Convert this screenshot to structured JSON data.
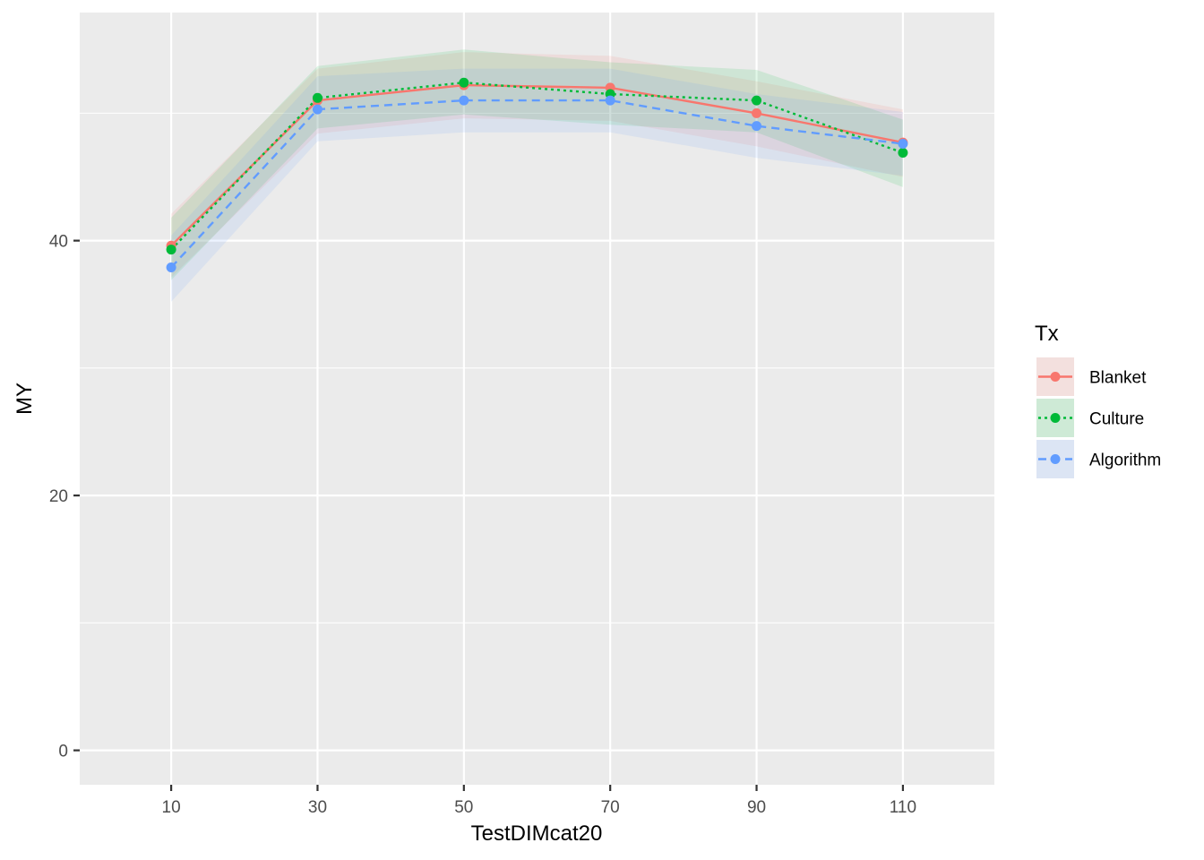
{
  "chart_data": {
    "type": "line",
    "title": "",
    "xlabel": "TestDIMcat20",
    "ylabel": "MY",
    "x": [
      10,
      30,
      50,
      70,
      90,
      110
    ],
    "xlim": [
      -2.5,
      122.5
    ],
    "ylim": [
      -2.7,
      57.9
    ],
    "x_ticks": [
      10,
      30,
      50,
      70,
      90,
      110
    ],
    "y_ticks": [
      0,
      20,
      40
    ],
    "y_minor_gridlines": [
      10,
      30,
      50
    ],
    "grid": true,
    "legend": {
      "title": "Tx",
      "placement": "right"
    },
    "series": [
      {
        "name": "Blanket",
        "color": "#F8766D",
        "linestyle": "solid",
        "values": [
          39.6,
          51.0,
          52.2,
          52.0,
          50.0,
          47.7
        ],
        "ci_lower": [
          37.1,
          48.4,
          49.6,
          49.4,
          47.4,
          45.0
        ],
        "ci_upper": [
          42.1,
          53.5,
          54.8,
          54.5,
          52.5,
          50.3
        ]
      },
      {
        "name": "Culture",
        "color": "#00BA38",
        "linestyle": "dotted",
        "values": [
          39.3,
          51.2,
          52.4,
          51.5,
          51.0,
          46.9
        ],
        "ci_lower": [
          36.9,
          48.8,
          49.9,
          49.1,
          48.5,
          44.2
        ],
        "ci_upper": [
          41.8,
          53.7,
          55.0,
          54.0,
          53.4,
          49.5
        ]
      },
      {
        "name": "Algorithm",
        "color": "#619CFF",
        "linestyle": "dashed",
        "values": [
          37.9,
          50.3,
          51.0,
          51.0,
          49.0,
          47.6
        ],
        "ci_lower": [
          35.2,
          47.8,
          48.5,
          48.5,
          46.5,
          45.1
        ],
        "ci_upper": [
          40.4,
          52.9,
          53.5,
          53.5,
          51.5,
          50.1
        ]
      }
    ]
  }
}
